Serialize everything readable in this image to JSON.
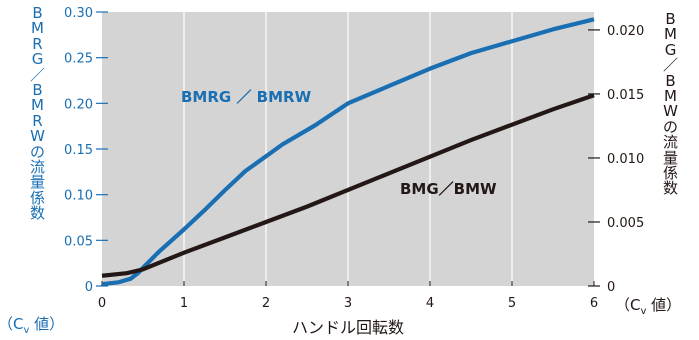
{
  "colors": {
    "left": "#1a6fb3",
    "right": "#231815",
    "plot_bg": "#d4d4d5",
    "grid": "#ffffff"
  },
  "left_axis": {
    "label_chars": [
      "B",
      "M",
      "R",
      "G",
      "／",
      "B",
      "M",
      "R",
      "W",
      "の",
      "流",
      "量",
      "係",
      "数"
    ],
    "unit_prefix": "（C",
    "unit_sub": "v",
    "unit_suffix": " 値）",
    "tick_labels": [
      "0",
      "0.05",
      "0.10",
      "0.15",
      "0.20",
      "0.25",
      "0.30"
    ]
  },
  "right_axis": {
    "label_chars": [
      "B",
      "M",
      "G",
      "／",
      "B",
      "M",
      "W",
      "の",
      "流",
      "量",
      "係",
      "数"
    ],
    "unit_prefix": "（C",
    "unit_sub": "v",
    "unit_suffix": " 値）",
    "tick_labels": [
      "0",
      "0.005",
      "0.010",
      "0.015",
      "0.020"
    ]
  },
  "x_axis": {
    "label": "ハンドル回転数",
    "tick_labels": [
      "0",
      "1",
      "2",
      "3",
      "4",
      "5",
      "6"
    ]
  },
  "chart_data": {
    "type": "line",
    "xlabel": "ハンドル回転数",
    "ylabel_left": "BMRG／BMRWの流量係数（Cv 値）",
    "ylabel_right": "BMG／BMWの流量係数（Cv 値）",
    "xlim": [
      0,
      6
    ],
    "ylim_left": [
      0,
      0.3
    ],
    "ylim_right": [
      0,
      0.0214
    ],
    "grid": "vertical",
    "series": [
      {
        "name": "BMRG ／ BMRW",
        "axis": "left",
        "color": "#1a6fb3",
        "x": [
          0,
          0.2,
          0.35,
          0.45,
          0.5,
          0.7,
          1.0,
          1.25,
          1.5,
          1.75,
          2.0,
          2.2,
          2.6,
          3.0,
          3.5,
          4.0,
          4.5,
          5.0,
          5.5,
          6.0
        ],
        "y": [
          0.002,
          0.004,
          0.008,
          0.015,
          0.02,
          0.038,
          0.062,
          0.083,
          0.105,
          0.126,
          0.142,
          0.155,
          0.176,
          0.2,
          0.219,
          0.238,
          0.255,
          0.268,
          0.281,
          0.292
        ]
      },
      {
        "name": "BMG／BMW",
        "axis": "right",
        "color": "#231815",
        "x": [
          0,
          0.3,
          0.5,
          1.0,
          1.5,
          2.0,
          2.5,
          3.0,
          3.5,
          4.0,
          4.5,
          5.0,
          5.5,
          6.0
        ],
        "y": [
          0.0008,
          0.001,
          0.0013,
          0.0026,
          0.0038,
          0.005,
          0.0062,
          0.0075,
          0.0088,
          0.0101,
          0.0114,
          0.0126,
          0.0138,
          0.0149
        ]
      }
    ]
  }
}
